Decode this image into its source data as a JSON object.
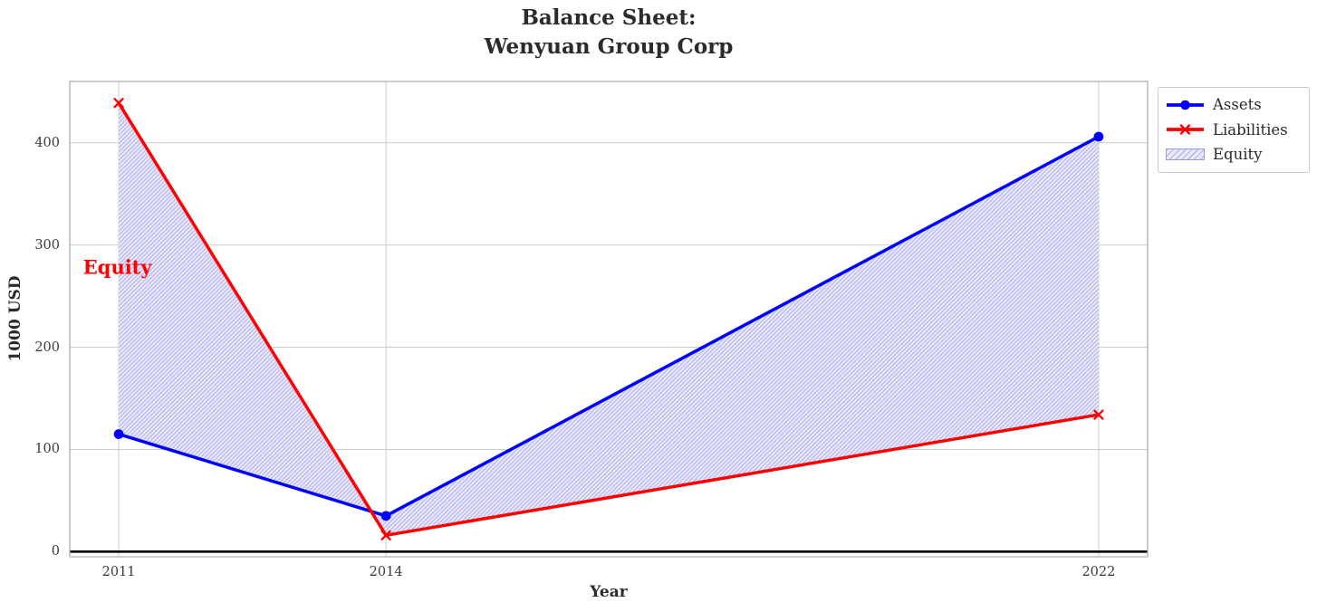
{
  "figure": {
    "title_line1": "Balance Sheet:",
    "title_line2": "Wenyuan Group Corp"
  },
  "axes": {
    "x_label": "Year",
    "y_label": "1000 USD",
    "x_tick_labels": [
      "2011",
      "2014",
      "2022"
    ],
    "y_tick_labels": [
      "0",
      "100",
      "200",
      "300",
      "400"
    ]
  },
  "chart_data": {
    "type": "line",
    "title": "Balance Sheet:\nWenyuan Group Corp",
    "xlabel": "Year",
    "ylabel": "1000 USD",
    "x": [
      2011,
      2014,
      2022
    ],
    "series": [
      {
        "name": "Assets",
        "values": [
          115,
          35,
          406
        ],
        "color": "#0000ff",
        "marker": "circle",
        "line_width": 3.5
      },
      {
        "name": "Liabilities",
        "values": [
          439,
          16,
          134
        ],
        "color": "#ff0000",
        "marker": "x",
        "line_width": 3.5
      }
    ],
    "fill_between": {
      "label": "Equity",
      "between_series": [
        "Assets",
        "Liabilities"
      ],
      "hatch": "/",
      "face_color": "#e9e9fb",
      "hatch_color": "#b2b2ec",
      "edge_color": "#9a9ae0"
    },
    "annotation": {
      "text": "Equity",
      "x": 2010.6,
      "y": 278,
      "color": "#ff0000"
    },
    "x_tick_values": [
      2011,
      2014,
      2022
    ],
    "y_tick_values": [
      0,
      100,
      200,
      300,
      400
    ],
    "xlim": [
      2010.45,
      2022.55
    ],
    "ylim": [
      -5,
      460
    ],
    "grid": true,
    "grid_color": "#cccccc",
    "zero_line": true,
    "zero_line_color": "#000000",
    "legend_position": "outside upper right"
  }
}
